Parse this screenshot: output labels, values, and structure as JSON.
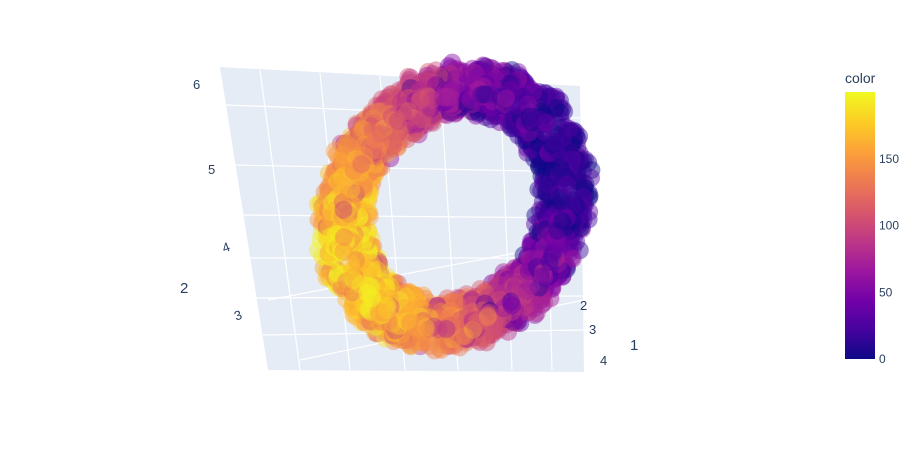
{
  "chart_data": {
    "type": "scatter",
    "subtype": "3d-scatter",
    "shape": "torus",
    "n_points_estimate": 2000,
    "point_opacity": 0.45,
    "axes": {
      "left_vertical_ticks": [
        "6",
        "5",
        "4",
        "3"
      ],
      "right_depth_ticks": [
        "2",
        "3",
        "4"
      ],
      "titles": [
        "2",
        "1"
      ]
    },
    "colorbar": {
      "title": "color",
      "range": [
        0,
        200
      ],
      "ticks": [
        {
          "value": 0,
          "label": "0"
        },
        {
          "value": 50,
          "label": "50"
        },
        {
          "value": 100,
          "label": "100"
        },
        {
          "value": 150,
          "label": "150"
        }
      ],
      "colorscale": [
        "#0d0887",
        "#46039f",
        "#7201a8",
        "#9c179e",
        "#bd3786",
        "#d8576b",
        "#ed7953",
        "#fb9f3a",
        "#fdca26",
        "#f0f921"
      ]
    },
    "colors": {
      "scene_bg": "#e5ecf6",
      "grid": "#ffffff",
      "text": "#2a3f5f"
    }
  }
}
